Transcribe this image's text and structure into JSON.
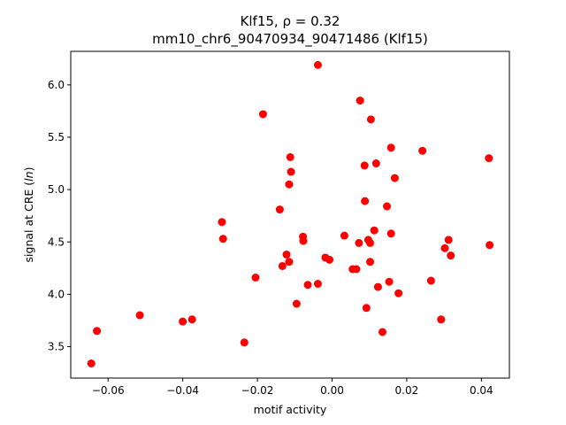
{
  "chart_data": {
    "type": "scatter",
    "title_line1": "Klf15, ρ = 0.32",
    "title_line2": "mm10_chr6_90470934_90471486 (Klf15)",
    "xlabel": "motif activity",
    "ylabel_prefix": "signal at CRE (",
    "ylabel_italic": "ln",
    "ylabel_suffix": ")",
    "xlim": [
      -0.07,
      0.0475
    ],
    "ylim": [
      3.2,
      6.32
    ],
    "xticks": [
      -0.06,
      -0.04,
      -0.02,
      0.0,
      0.02,
      0.04
    ],
    "xtick_labels": [
      "−0.06",
      "−0.04",
      "−0.02",
      "0.00",
      "0.02",
      "0.04"
    ],
    "yticks": [
      3.5,
      4.0,
      4.5,
      5.0,
      5.5,
      6.0
    ],
    "ytick_labels": [
      "3.5",
      "4.0",
      "4.5",
      "5.0",
      "5.5",
      "6.0"
    ],
    "grid": false,
    "marker_color": "#ff0000",
    "points": [
      [
        -0.0645,
        3.34
      ],
      [
        -0.063,
        3.65
      ],
      [
        -0.0515,
        3.8
      ],
      [
        -0.04,
        3.74
      ],
      [
        -0.0375,
        3.76
      ],
      [
        -0.0295,
        4.69
      ],
      [
        -0.0292,
        4.53
      ],
      [
        -0.0235,
        3.54
      ],
      [
        -0.0205,
        4.16
      ],
      [
        -0.0185,
        5.72
      ],
      [
        -0.014,
        4.81
      ],
      [
        -0.0133,
        4.27
      ],
      [
        -0.0122,
        4.38
      ],
      [
        -0.0115,
        4.31
      ],
      [
        -0.0115,
        5.05
      ],
      [
        -0.0112,
        5.31
      ],
      [
        -0.011,
        5.17
      ],
      [
        -0.0095,
        3.91
      ],
      [
        -0.0078,
        4.55
      ],
      [
        -0.0077,
        4.51
      ],
      [
        -0.0065,
        4.09
      ],
      [
        -0.0038,
        6.19
      ],
      [
        -0.0038,
        4.1
      ],
      [
        -0.0018,
        4.35
      ],
      [
        -0.0007,
        4.33
      ],
      [
        0.0033,
        4.56
      ],
      [
        0.0055,
        4.24
      ],
      [
        0.0065,
        4.24
      ],
      [
        0.0072,
        4.49
      ],
      [
        0.0075,
        5.85
      ],
      [
        0.0087,
        5.23
      ],
      [
        0.0088,
        4.89
      ],
      [
        0.0092,
        3.87
      ],
      [
        0.0097,
        4.52
      ],
      [
        0.0102,
        4.49
      ],
      [
        0.0102,
        4.31
      ],
      [
        0.0104,
        5.67
      ],
      [
        0.0113,
        4.61
      ],
      [
        0.0118,
        5.25
      ],
      [
        0.0123,
        4.07
      ],
      [
        0.0135,
        3.64
      ],
      [
        0.0147,
        4.84
      ],
      [
        0.0153,
        4.12
      ],
      [
        0.0158,
        5.4
      ],
      [
        0.0158,
        4.58
      ],
      [
        0.0168,
        5.11
      ],
      [
        0.0178,
        4.01
      ],
      [
        0.0242,
        5.37
      ],
      [
        0.0265,
        4.13
      ],
      [
        0.0292,
        3.76
      ],
      [
        0.0302,
        4.44
      ],
      [
        0.0312,
        4.52
      ],
      [
        0.0318,
        4.37
      ],
      [
        0.042,
        5.3
      ],
      [
        0.0422,
        4.47
      ]
    ]
  }
}
